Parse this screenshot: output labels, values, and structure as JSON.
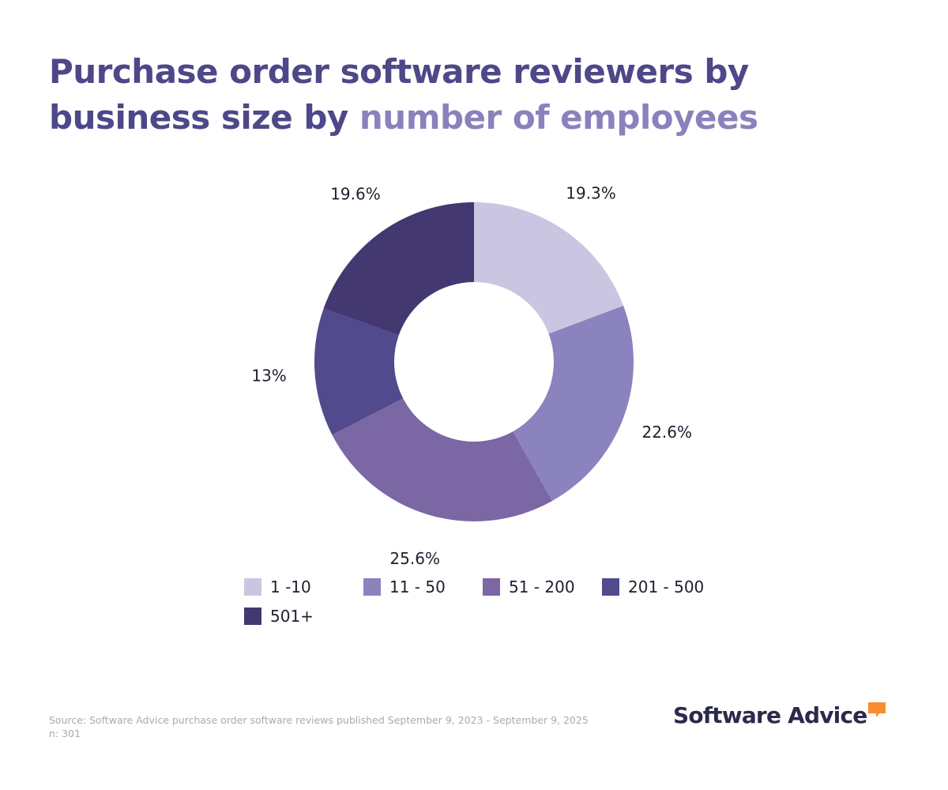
{
  "title": {
    "part1": "Purchase order software reviewers by business size by ",
    "part2": "number of employees"
  },
  "chart_data": {
    "type": "pie",
    "donut": true,
    "categories": [
      "1 -10",
      "11 - 50",
      "51 - 200",
      "201 - 500",
      "501+"
    ],
    "values": [
      19.3,
      22.6,
      25.6,
      13,
      19.6
    ],
    "labels": [
      "19.3%",
      "22.6%",
      "25.6%",
      "13%",
      "19.6%"
    ],
    "colors": [
      "#cac6e2",
      "#8a83be",
      "#7b67a4",
      "#514a8c",
      "#433870"
    ],
    "legend_position": "bottom"
  },
  "footer": {
    "source": "Source: Software Advice purchase order software reviews published September 9, 2023 - September 9, 2025",
    "n": "n: 301"
  },
  "logo": {
    "text": "Software Advice",
    "color": "#2b2a4c",
    "accent_color": "#f68d2e"
  }
}
